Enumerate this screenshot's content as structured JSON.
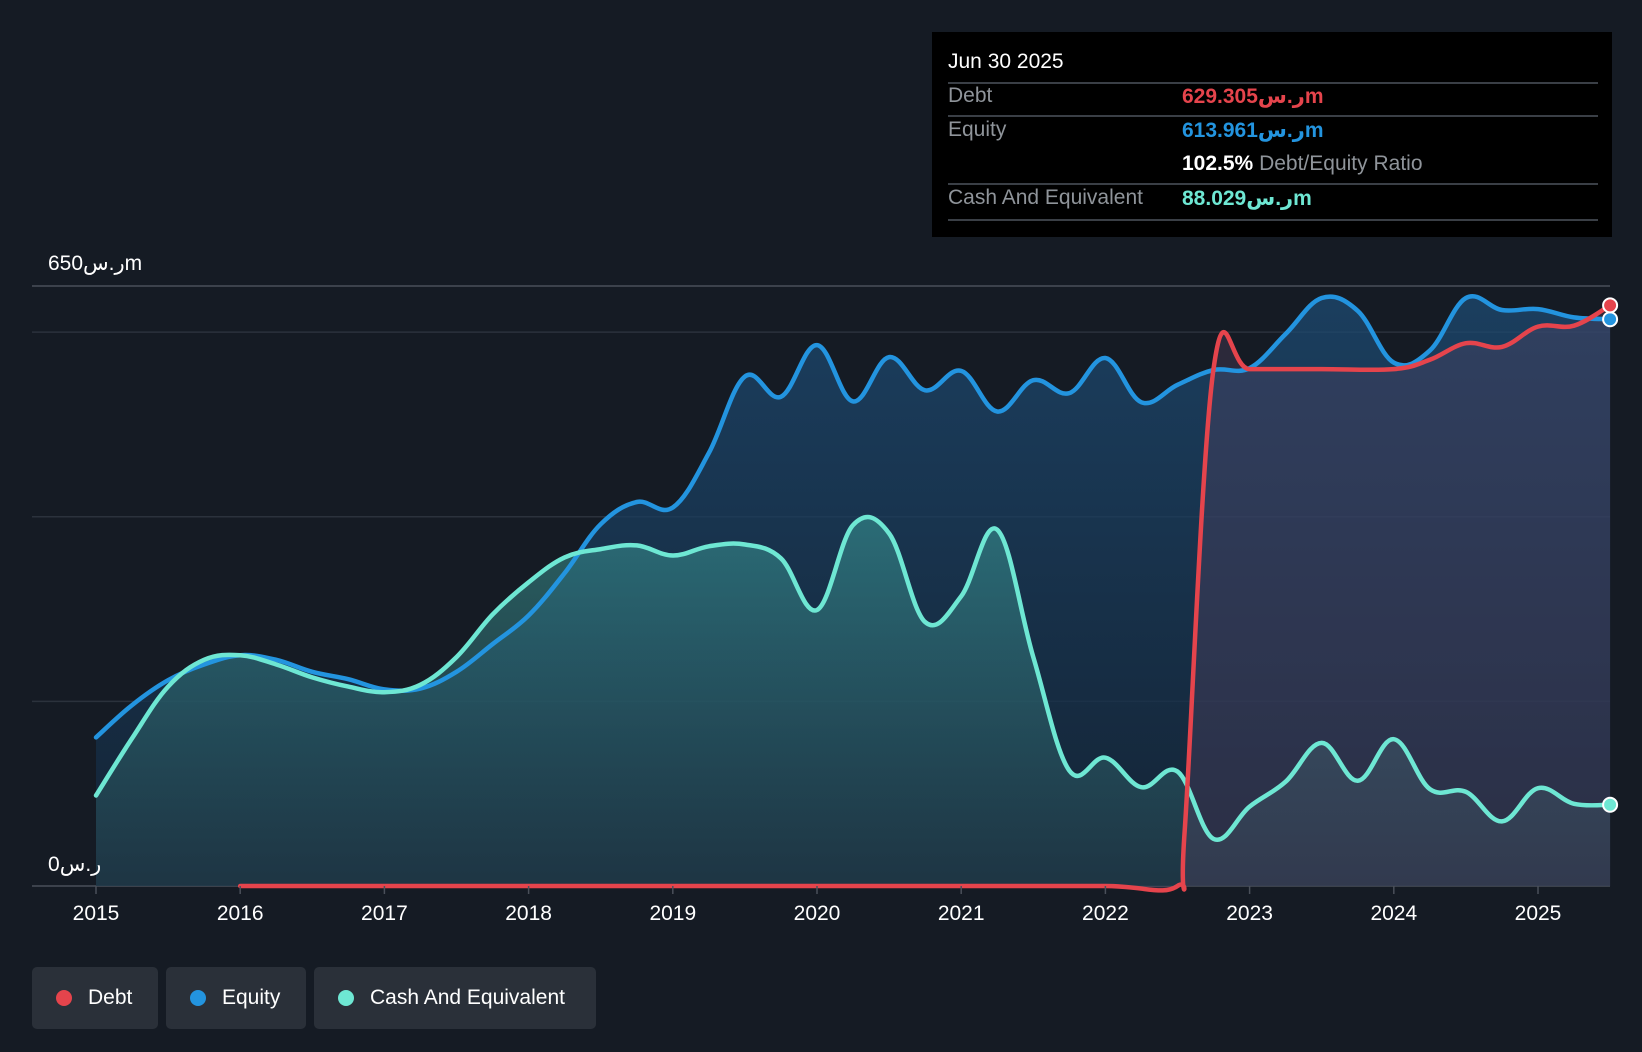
{
  "tooltip": {
    "date": "Jun 30 2025",
    "debt_label": "Debt",
    "debt_value": "629.305ر.سm",
    "equity_label": "Equity",
    "equity_value": "613.961ر.سm",
    "ratio_value": "102.5%",
    "ratio_label": "Debt/Equity Ratio",
    "cash_label": "Cash And Equivalent",
    "cash_value": "88.029ر.سm"
  },
  "legend": [
    {
      "label": "Debt",
      "color": "#e5444c"
    },
    {
      "label": "Equity",
      "color": "#2394df"
    },
    {
      "label": "Cash And Equivalent",
      "color": "#6ee7d3"
    }
  ],
  "chart_data": {
    "type": "area",
    "title": "",
    "ylabel_top": "650ر.سm",
    "ylabel_bottom": "0ر.س",
    "ylim": [
      0,
      650
    ],
    "xlim": [
      2015,
      2025.5
    ],
    "x_ticks": [
      "2015",
      "2016",
      "2017",
      "2018",
      "2019",
      "2020",
      "2021",
      "2022",
      "2023",
      "2024",
      "2025"
    ],
    "series": [
      {
        "name": "Equity",
        "color": "#2394df",
        "points": [
          [
            2015.0,
            161
          ],
          [
            2015.25,
            196
          ],
          [
            2015.5,
            223
          ],
          [
            2015.75,
            240
          ],
          [
            2016.0,
            250
          ],
          [
            2016.25,
            245
          ],
          [
            2016.5,
            232
          ],
          [
            2016.75,
            224
          ],
          [
            2017.0,
            213
          ],
          [
            2017.25,
            214
          ],
          [
            2017.5,
            232
          ],
          [
            2017.75,
            262
          ],
          [
            2018.0,
            293
          ],
          [
            2018.25,
            339
          ],
          [
            2018.5,
            392
          ],
          [
            2018.75,
            416
          ],
          [
            2019.0,
            410
          ],
          [
            2019.25,
            469
          ],
          [
            2019.5,
            552
          ],
          [
            2019.75,
            530
          ],
          [
            2020.0,
            586
          ],
          [
            2020.25,
            525
          ],
          [
            2020.5,
            573
          ],
          [
            2020.75,
            537
          ],
          [
            2021.0,
            558
          ],
          [
            2021.25,
            514
          ],
          [
            2021.5,
            548
          ],
          [
            2021.75,
            534
          ],
          [
            2022.0,
            572
          ],
          [
            2022.25,
            524
          ],
          [
            2022.5,
            543
          ],
          [
            2022.75,
            559
          ],
          [
            2023.0,
            561
          ],
          [
            2023.25,
            598
          ],
          [
            2023.5,
            637
          ],
          [
            2023.75,
            623
          ],
          [
            2024.0,
            567
          ],
          [
            2024.25,
            580
          ],
          [
            2024.5,
            637
          ],
          [
            2024.75,
            624
          ],
          [
            2025.0,
            625
          ],
          [
            2025.25,
            616
          ],
          [
            2025.5,
            614
          ]
        ]
      },
      {
        "name": "Cash And Equivalent",
        "color": "#6ee7d3",
        "points": [
          [
            2015.0,
            98
          ],
          [
            2015.25,
            160
          ],
          [
            2015.5,
            216
          ],
          [
            2015.75,
            245
          ],
          [
            2016.0,
            250
          ],
          [
            2016.25,
            240
          ],
          [
            2016.5,
            226
          ],
          [
            2016.75,
            216
          ],
          [
            2017.0,
            210
          ],
          [
            2017.25,
            218
          ],
          [
            2017.5,
            248
          ],
          [
            2017.75,
            294
          ],
          [
            2018.0,
            329
          ],
          [
            2018.25,
            356
          ],
          [
            2018.5,
            365
          ],
          [
            2018.75,
            369
          ],
          [
            2019.0,
            358
          ],
          [
            2019.25,
            368
          ],
          [
            2019.5,
            370
          ],
          [
            2019.75,
            355
          ],
          [
            2020.0,
            299
          ],
          [
            2020.25,
            391
          ],
          [
            2020.5,
            382
          ],
          [
            2020.75,
            286
          ],
          [
            2021.0,
            314
          ],
          [
            2021.25,
            386
          ],
          [
            2021.5,
            248
          ],
          [
            2021.75,
            125
          ],
          [
            2022.0,
            139
          ],
          [
            2022.25,
            107
          ],
          [
            2022.5,
            124
          ],
          [
            2022.75,
            51
          ],
          [
            2023.0,
            86
          ],
          [
            2023.25,
            113
          ],
          [
            2023.5,
            155
          ],
          [
            2023.75,
            114
          ],
          [
            2024.0,
            159
          ],
          [
            2024.25,
            105
          ],
          [
            2024.5,
            102
          ],
          [
            2024.75,
            70
          ],
          [
            2025.0,
            106
          ],
          [
            2025.25,
            89
          ],
          [
            2025.5,
            88
          ]
        ]
      },
      {
        "name": "Debt",
        "color": "#e5444c",
        "points": [
          [
            2016.0,
            0
          ],
          [
            2017.0,
            0
          ],
          [
            2018.0,
            0
          ],
          [
            2019.0,
            0
          ],
          [
            2020.0,
            0
          ],
          [
            2021.0,
            0
          ],
          [
            2022.0,
            0
          ],
          [
            2022.5,
            0
          ],
          [
            2022.55,
            60
          ],
          [
            2022.75,
            560
          ],
          [
            2023.0,
            560
          ],
          [
            2023.5,
            560
          ],
          [
            2024.0,
            560
          ],
          [
            2024.25,
            570
          ],
          [
            2024.5,
            588
          ],
          [
            2024.75,
            584
          ],
          [
            2025.0,
            606
          ],
          [
            2025.25,
            607
          ],
          [
            2025.5,
            629
          ]
        ]
      }
    ]
  }
}
